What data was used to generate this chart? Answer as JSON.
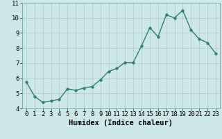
{
  "x": [
    0,
    1,
    2,
    3,
    4,
    5,
    6,
    7,
    8,
    9,
    10,
    11,
    12,
    13,
    14,
    15,
    16,
    17,
    18,
    19,
    20,
    21,
    22,
    23
  ],
  "y": [
    5.75,
    4.8,
    4.4,
    4.5,
    4.6,
    5.3,
    5.2,
    5.35,
    5.45,
    5.9,
    6.45,
    6.65,
    7.05,
    7.05,
    8.15,
    9.35,
    8.75,
    10.2,
    10.0,
    10.5,
    9.2,
    8.6,
    8.35,
    7.65
  ],
  "xlabel": "Humidex (Indice chaleur)",
  "ylim": [
    4,
    11
  ],
  "xlim": [
    -0.5,
    23.5
  ],
  "yticks": [
    4,
    5,
    6,
    7,
    8,
    9,
    10,
    11
  ],
  "xticks": [
    0,
    1,
    2,
    3,
    4,
    5,
    6,
    7,
    8,
    9,
    10,
    11,
    12,
    13,
    14,
    15,
    16,
    17,
    18,
    19,
    20,
    21,
    22,
    23
  ],
  "line_color": "#2e7d6e",
  "marker_color": "#2e7d6e",
  "bg_color": "#cce8e8",
  "grid_color": "#b0cccc",
  "xlabel_fontsize": 7.5,
  "tick_fontsize": 6.5,
  "line_width": 1.0,
  "marker_size": 2.5
}
